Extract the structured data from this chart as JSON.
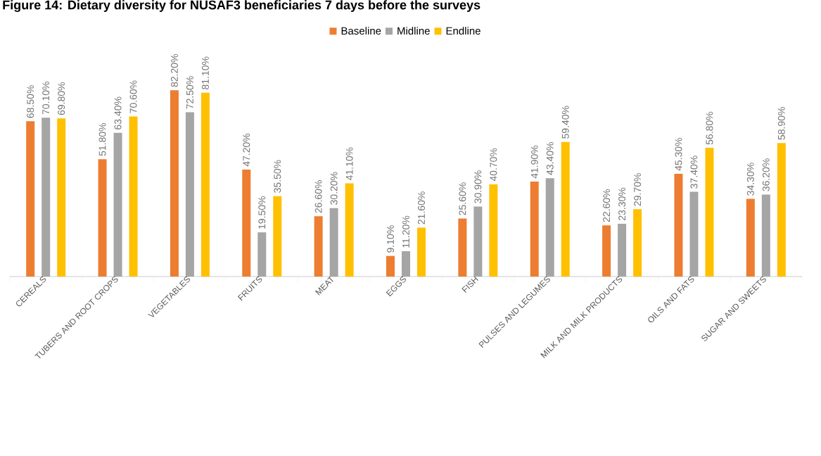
{
  "chart_data": {
    "type": "bar",
    "title": "Figure 14: Dietary diversity for NUSAF3 beneficiaries 7 days before the surveys",
    "categories": [
      "CEREALS",
      "TUBERS AND ROOT CROPS",
      "VEGETABLES",
      "FRUITS",
      "MEAT",
      "EGGS",
      "FISH",
      "PULSES AND LEGUMES",
      "MILK AND MILK PRODUCTS",
      "OILS AND FATS",
      "SUGAR AND SWEETS"
    ],
    "series": [
      {
        "name": "Baseline",
        "color": "#ed7d31",
        "values": [
          68.5,
          51.8,
          82.2,
          47.2,
          26.6,
          9.1,
          25.6,
          41.9,
          22.6,
          45.3,
          34.3
        ],
        "value_labels": [
          "68.50%",
          "51.80%",
          "82.20%",
          "47.20%",
          "26.60%",
          "9.10%",
          "25.60%",
          "41.90%",
          "22.60%",
          "45.30%",
          "34.30%"
        ]
      },
      {
        "name": "Midline",
        "color": "#a5a5a5",
        "values": [
          70.1,
          63.4,
          72.5,
          19.5,
          30.2,
          11.2,
          30.9,
          43.4,
          23.3,
          37.4,
          36.2
        ],
        "value_labels": [
          "70.10%",
          "63.40%",
          "72.50%",
          "19.50%",
          "30.20%",
          "11.20%",
          "30.90%",
          "43.40%",
          "23.30%",
          "37.40%",
          "36.20%"
        ]
      },
      {
        "name": "Endline",
        "color": "#ffc000",
        "values": [
          69.8,
          70.6,
          81.1,
          35.5,
          41.1,
          21.6,
          40.7,
          59.4,
          29.7,
          56.8,
          58.9
        ],
        "value_labels": [
          "69.80%",
          "70.60%",
          "81.10%",
          "35.50%",
          "41.10%",
          "21.60%",
          "40.70%",
          "59.40%",
          "29.70%",
          "56.80%",
          "58.90%"
        ]
      }
    ],
    "legend": "top"
  }
}
